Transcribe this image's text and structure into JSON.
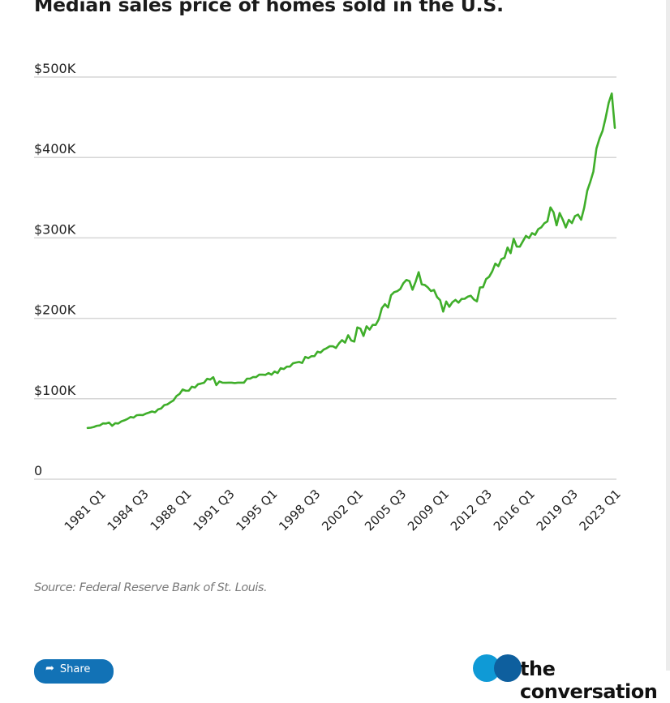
{
  "page": {
    "title": "Median sales price of homes sold in the U.S.",
    "source": "Source: Federal Reserve Bank of St. Louis.",
    "share_label": "Share",
    "share_icon": "share-icon",
    "logo_text": "the conversation",
    "colors": {
      "line": "#3fae2a",
      "share_button": "#1272b6",
      "logo_light": "#0f9ad6",
      "logo_dark": "#0e5f9e"
    }
  },
  "chart_data": {
    "type": "line",
    "title": "Median sales price of homes sold in the U.S.",
    "xlabel": "",
    "ylabel": "",
    "ylim": [
      0,
      500000
    ],
    "yticks": [
      0,
      100000,
      200000,
      300000,
      400000,
      500000
    ],
    "ytick_labels": [
      "0",
      "$100K",
      "$200K",
      "$300K",
      "$400K",
      "$500K"
    ],
    "xtick_labels": [
      "1981 Q1",
      "1984 Q3",
      "1988 Q1",
      "1991 Q3",
      "1995 Q1",
      "1998 Q3",
      "2002 Q1",
      "2005 Q3",
      "2009 Q1",
      "2012 Q3",
      "2016 Q1",
      "2019 Q3",
      "2023 Q1"
    ],
    "xtick_index": [
      4,
      18,
      32,
      46,
      60,
      74,
      88,
      102,
      116,
      130,
      144,
      158,
      172
    ],
    "x_start": "1980 Q1",
    "x_end": "2023 Q1",
    "grid": true,
    "legend": "none",
    "series": [
      {
        "name": "Median sales price",
        "unit": "USD thousands",
        "values": [
          63.7,
          64.0,
          64.9,
          66.4,
          66.8,
          69.4,
          69.2,
          70.4,
          66.4,
          69.6,
          69.2,
          71.9,
          73.2,
          74.9,
          77.3,
          76.6,
          79.5,
          79.9,
          79.7,
          81.5,
          82.8,
          84.2,
          83.2,
          86.8,
          88.0,
          92.1,
          93.0,
          95.6,
          97.9,
          103.4,
          106.0,
          111.5,
          110.0,
          110.0,
          115.0,
          113.9,
          118.0,
          118.9,
          120.0,
          124.8,
          123.9,
          126.8,
          117.0,
          121.5,
          120.0,
          119.9,
          120.0,
          120.0,
          119.5,
          120.0,
          120.0,
          120.0,
          125.0,
          125.0,
          127.0,
          127.0,
          130.0,
          130.0,
          129.7,
          132.0,
          130.0,
          133.9,
          132.0,
          138.0,
          137.0,
          139.9,
          140.0,
          144.1,
          145.0,
          145.8,
          144.5,
          152.0,
          150.5,
          152.9,
          153.0,
          158.5,
          157.4,
          161.1,
          162.9,
          165.3,
          165.3,
          163.2,
          168.8,
          172.9,
          169.8,
          179.0,
          172.5,
          171.1,
          188.7,
          187.2,
          178.1,
          190.1,
          186.0,
          191.8,
          191.9,
          198.8,
          212.7,
          217.6,
          213.5,
          228.8,
          232.5,
          233.7,
          236.4,
          243.6,
          247.7,
          246.3,
          235.6,
          245.4,
          257.4,
          242.2,
          241.5,
          238.4,
          233.9,
          235.3,
          226.5,
          222.5,
          208.4,
          220.9,
          214.3,
          220.0,
          222.9,
          219.5,
          224.1,
          224.3,
          226.9,
          228.1,
          223.5,
          221.1,
          238.4,
          238.7,
          248.8,
          251.7,
          258.4,
          268.1,
          264.8,
          273.6,
          275.2,
          288.0,
          281.0,
          298.9,
          289.2,
          289.1,
          295.8,
          302.5,
          299.8,
          306.0,
          303.8,
          310.9,
          313.1,
          318.2,
          320.5,
          337.9,
          331.8,
          315.6,
          330.9,
          322.8,
          313.0,
          322.5,
          318.4,
          327.1,
          329.0,
          322.6,
          337.5,
          358.7,
          369.8,
          382.6,
          411.2,
          423.6,
          433.1,
          449.3,
          468.0,
          479.5,
          436.8
        ]
      }
    ]
  }
}
